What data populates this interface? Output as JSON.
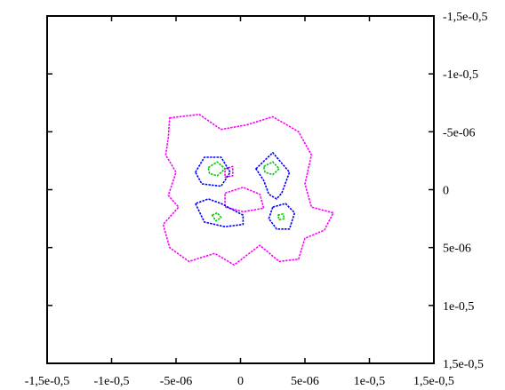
{
  "chart_data": {
    "type": "contour",
    "title": "",
    "xlabel": "",
    "ylabel": "",
    "xlim": [
      -1.5e-05,
      1.5e-05
    ],
    "ylim": [
      -1.5e-05,
      1.5e-05
    ],
    "y_inverted": true,
    "grid": false,
    "x_ticks": [
      {
        "value": -1.5e-05,
        "label": "-1,5e-0,5"
      },
      {
        "value": -1e-05,
        "label": "-1e-0,5"
      },
      {
        "value": -5e-06,
        "label": "-5e-06"
      },
      {
        "value": 0,
        "label": "0"
      },
      {
        "value": 5e-06,
        "label": "5e-06"
      },
      {
        "value": 1e-05,
        "label": "1e-0,5"
      },
      {
        "value": 1.5e-05,
        "label": "1,5e-0,5"
      }
    ],
    "y_ticks": [
      {
        "value": -1.5e-05,
        "label": "-1,5e-0,5"
      },
      {
        "value": -1e-05,
        "label": "-1e-0,5"
      },
      {
        "value": -5e-06,
        "label": "-5e-06"
      },
      {
        "value": 0,
        "label": "0"
      },
      {
        "value": 5e-06,
        "label": "5e-06"
      },
      {
        "value": 1e-05,
        "label": "1e-0,5"
      },
      {
        "value": 1.5e-05,
        "label": "1,5e-0,5"
      }
    ],
    "series": [
      {
        "color": "#ff00ff",
        "closed": true,
        "points": [
          [
            -5.5e-06,
            -6.2e-06
          ],
          [
            -3.2e-06,
            -6.5e-06
          ],
          [
            -1.5e-06,
            -5.2e-06
          ],
          [
            5e-07,
            -5.6e-06
          ],
          [
            2.5e-06,
            -6.3e-06
          ],
          [
            4.5e-06,
            -5e-06
          ],
          [
            5.5e-06,
            -3e-06
          ],
          [
            5e-06,
            -5e-07
          ],
          [
            5.5e-06,
            1.5e-06
          ],
          [
            7.2e-06,
            2e-06
          ],
          [
            6.5e-06,
            3.5e-06
          ],
          [
            5e-06,
            4.2e-06
          ],
          [
            4.5e-06,
            6e-06
          ],
          [
            3e-06,
            6.2e-06
          ],
          [
            1.5e-06,
            4.8e-06
          ],
          [
            -5e-07,
            6.5e-06
          ],
          [
            -2e-06,
            5.5e-06
          ],
          [
            -4e-06,
            6.2e-06
          ],
          [
            -5.5e-06,
            5e-06
          ],
          [
            -6e-06,
            3e-06
          ],
          [
            -4.8e-06,
            1.5e-06
          ],
          [
            -5.6e-06,
            5e-07
          ],
          [
            -5e-06,
            -1.5e-06
          ],
          [
            -5.8e-06,
            -3e-06
          ],
          [
            -5.6e-06,
            -4.5e-06
          ]
        ]
      },
      {
        "color": "#ff00ff",
        "closed": true,
        "points": [
          [
            -1.2e-06,
            3e-07
          ],
          [
            2e-07,
            -2e-07
          ],
          [
            1.5e-06,
            4e-07
          ],
          [
            1.8e-06,
            1.6e-06
          ],
          [
            2e-07,
            1.9e-06
          ],
          [
            -1.2e-06,
            1.5e-06
          ]
        ]
      },
      {
        "color": "#ff00ff",
        "closed": true,
        "points": [
          [
            -1.2e-06,
            -1.8e-06
          ],
          [
            -6e-07,
            -2e-06
          ],
          [
            -6e-07,
            -1.2e-06
          ],
          [
            -1.2e-06,
            -1.1e-06
          ]
        ]
      },
      {
        "color": "#0000ff",
        "closed": true,
        "points": [
          [
            -3.5e-06,
            -1.5e-06
          ],
          [
            -2.8e-06,
            -2.8e-06
          ],
          [
            -1.5e-06,
            -2.8e-06
          ],
          [
            -8e-07,
            -1.5e-06
          ],
          [
            -1.5e-06,
            -3e-07
          ],
          [
            -3e-06,
            -5e-07
          ]
        ]
      },
      {
        "color": "#0000ff",
        "closed": true,
        "points": [
          [
            1.2e-06,
            -1.8e-06
          ],
          [
            2.5e-06,
            -3.2e-06
          ],
          [
            3.8e-06,
            -1.5e-06
          ],
          [
            3.2e-06,
            3e-07
          ],
          [
            2.8e-06,
            8e-07
          ],
          [
            2.2e-06,
            4e-07
          ],
          [
            1.8e-06,
            -8e-07
          ]
        ]
      },
      {
        "color": "#0000ff",
        "closed": true,
        "points": [
          [
            -3.5e-06,
            1.2e-06
          ],
          [
            -2.8e-06,
            2.8e-06
          ],
          [
            -1.2e-06,
            3.2e-06
          ],
          [
            2e-07,
            3e-06
          ],
          [
            2e-07,
            2.2e-06
          ],
          [
            -1.5e-06,
            1.2e-06
          ],
          [
            -2.5e-06,
            8e-07
          ]
        ]
      },
      {
        "color": "#0000ff",
        "closed": true,
        "points": [
          [
            2.5e-06,
            1.5e-06
          ],
          [
            3.5e-06,
            1.2e-06
          ],
          [
            4.2e-06,
            2e-06
          ],
          [
            3.8e-06,
            3.4e-06
          ],
          [
            2.8e-06,
            3.4e-06
          ],
          [
            2.2e-06,
            2.5e-06
          ]
        ]
      },
      {
        "color": "#00cc00",
        "closed": true,
        "points": [
          [
            -2.5e-06,
            -1.9e-06
          ],
          [
            -1.8e-06,
            -2.4e-06
          ],
          [
            -1.2e-06,
            -1.8e-06
          ],
          [
            -1.8e-06,
            -1.2e-06
          ],
          [
            -2.4e-06,
            -1.4e-06
          ]
        ]
      },
      {
        "color": "#00cc00",
        "closed": true,
        "points": [
          [
            1.8e-06,
            -2e-06
          ],
          [
            2.5e-06,
            -2.4e-06
          ],
          [
            3e-06,
            -1.8e-06
          ],
          [
            2.5e-06,
            -1.3e-06
          ],
          [
            1.9e-06,
            -1.5e-06
          ]
        ]
      },
      {
        "color": "#00cc00",
        "closed": true,
        "points": [
          [
            -2.2e-06,
            2.2e-06
          ],
          [
            -1.8e-06,
            2e-06
          ],
          [
            -1.5e-06,
            2.4e-06
          ],
          [
            -1.9e-06,
            2.7e-06
          ]
        ]
      },
      {
        "color": "#00cc00",
        "closed": true,
        "points": [
          [
            2.9e-06,
            2.2e-06
          ],
          [
            3.3e-06,
            2.1e-06
          ],
          [
            3.4e-06,
            2.5e-06
          ],
          [
            3e-06,
            2.6e-06
          ]
        ]
      }
    ]
  }
}
